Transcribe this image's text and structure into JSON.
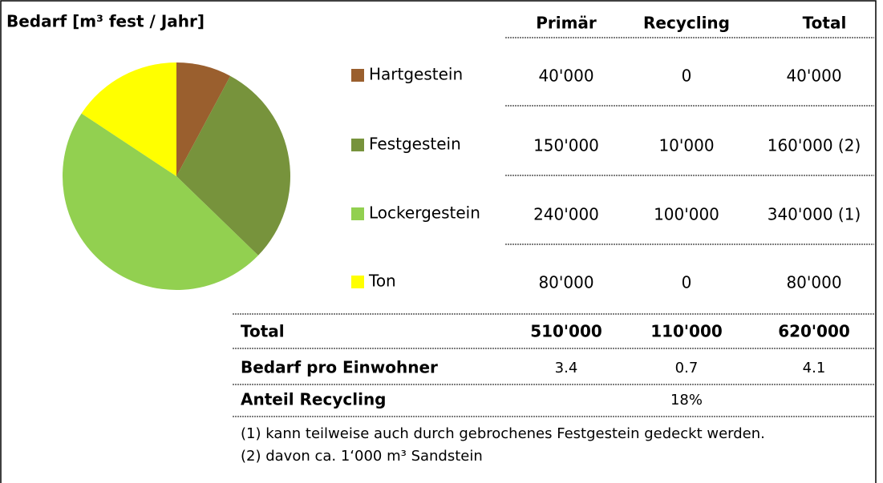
{
  "chart_data": {
    "type": "pie",
    "title": "Bedarf [m³ fest / Jahr]",
    "categories": [
      "Hartgestein",
      "Festgestein",
      "Lockergestein",
      "Ton"
    ],
    "values": [
      40000,
      150000,
      240000,
      80000
    ],
    "colors": [
      "#9a5f2e",
      "#77933c",
      "#92d050",
      "#ffff00"
    ]
  },
  "table": {
    "header": [
      "Primär",
      "Recycling",
      "Total"
    ],
    "rows": [
      [
        "40'000",
        "0",
        "40'000"
      ],
      [
        "150'000",
        "10'000",
        "160'000 (2)"
      ],
      [
        "240'000",
        "100'000",
        "340'000 (1)"
      ],
      [
        "80'000",
        "0",
        "80'000"
      ]
    ],
    "summary": [
      [
        "Total",
        "510'000",
        "110'000",
        "620'000"
      ],
      [
        "Bedarf pro Einwohner",
        "3.4",
        "0.7",
        "4.1"
      ],
      [
        "Anteil Recycling",
        "18%"
      ]
    ],
    "footnotes": [
      "(1) kann teilweise auch durch gebrochenes Festgestein gedeckt werden.",
      "(2) davon ca. 1‘000 m³ Sandstein"
    ]
  }
}
